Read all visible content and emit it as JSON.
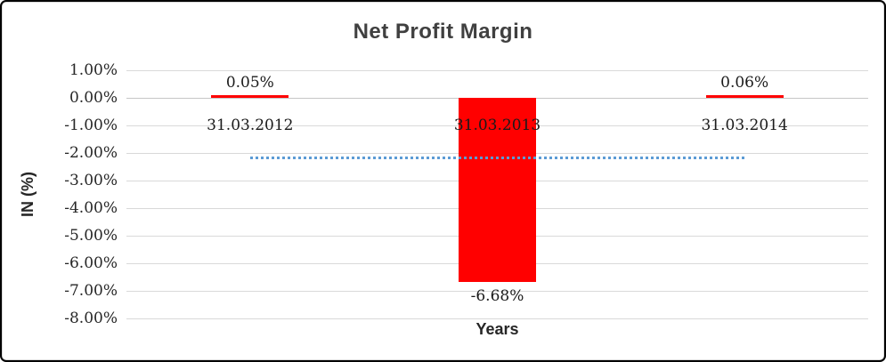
{
  "chart_data": {
    "type": "bar",
    "title": "Net Profit Margin",
    "xlabel": "Years",
    "ylabel": "IN (%)",
    "categories": [
      "31.03.2012",
      "31.03.2013",
      "31.03.2014"
    ],
    "values": [
      0.05,
      -6.68,
      0.06
    ],
    "data_labels": [
      "0.05%",
      "-6.68%",
      "0.06%"
    ],
    "ylim": [
      -8,
      1
    ],
    "ytick_values": [
      1,
      0,
      -1,
      -2,
      -3,
      -4,
      -5,
      -6,
      -7,
      -8
    ],
    "ytick_labels": [
      "1.00%",
      "0.00%",
      "-1.00%",
      "-2.00%",
      "-3.00%",
      "-4.00%",
      "-5.00%",
      "-6.00%",
      "-7.00%",
      "-8.00%"
    ],
    "grid": true,
    "legend": "none",
    "bar_color": "#ff0000",
    "trendline": {
      "style": "dotted",
      "color": "#5b9bd5",
      "value": -2.19
    },
    "colors": {
      "title_text": "#404040",
      "axis_text": "#262626",
      "gridline": "#d9d9d9"
    }
  }
}
